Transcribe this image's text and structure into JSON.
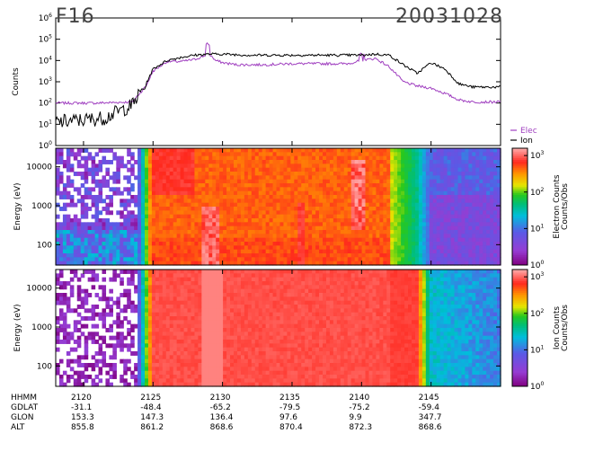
{
  "header": {
    "satellite": "F16",
    "date": "20031028"
  },
  "legend": {
    "items": [
      {
        "label": "Elec",
        "color": "#a040c0"
      },
      {
        "label": "Ion",
        "color": "#000000"
      }
    ]
  },
  "time_table": {
    "rows": [
      {
        "label": "HHMM",
        "values": [
          "2120",
          "2125",
          "2130",
          "2135",
          "2140",
          "2145"
        ]
      },
      {
        "label": "GDLAT",
        "values": [
          "-31.1",
          "-48.4",
          "-65.2",
          "-79.5",
          "-75.2",
          "-59.4"
        ]
      },
      {
        "label": "GLON",
        "values": [
          "153.3",
          "147.3",
          "136.4",
          "97.6",
          "9.9",
          "347.7"
        ]
      },
      {
        "label": "ALT",
        "values": [
          "855.8",
          "861.2",
          "868.6",
          "870.4",
          "872.3",
          "868.6"
        ]
      }
    ]
  },
  "chart_data": [
    {
      "type": "line",
      "ylabel": "Counts",
      "yscale": "log",
      "ylim_exp": [
        0,
        6
      ],
      "ytick_exps": [
        0,
        1,
        2,
        3,
        4,
        5,
        6
      ],
      "x_minutes": [
        2118,
        2150
      ],
      "xticks": [
        "2120",
        "2125",
        "2130",
        "2135",
        "2140",
        "2145"
      ],
      "series": [
        {
          "name": "Elec",
          "color": "#a040c0",
          "x": [
            2118,
            2121,
            2123.5,
            2124.5,
            2125,
            2126,
            2127,
            2128,
            2129,
            2129.5,
            2130,
            2131,
            2133,
            2135,
            2137,
            2139,
            2140,
            2141,
            2142,
            2143,
            2144,
            2145,
            2146,
            2147,
            2148,
            2150
          ],
          "log_y": [
            2.0,
            2.0,
            2.05,
            2.8,
            3.5,
            3.95,
            3.95,
            4.05,
            4.3,
            4.0,
            3.9,
            3.8,
            3.8,
            3.85,
            3.85,
            3.85,
            4.0,
            4.1,
            3.7,
            3.0,
            2.8,
            2.7,
            2.45,
            2.15,
            2.05,
            2.05
          ]
        },
        {
          "name": "Ion",
          "color": "#000000",
          "x": [
            2118,
            2120,
            2121.5,
            2122.5,
            2123.5,
            2124.5,
            2125,
            2126,
            2127,
            2128,
            2129,
            2130,
            2132,
            2135,
            2138,
            2140,
            2141,
            2142,
            2143,
            2144,
            2145,
            2146,
            2147,
            2148,
            2150
          ],
          "log_y": [
            1.1,
            1.2,
            1.3,
            1.6,
            1.9,
            2.9,
            3.6,
            4.0,
            4.15,
            4.25,
            4.3,
            4.3,
            4.25,
            4.25,
            4.25,
            4.25,
            4.3,
            4.25,
            3.8,
            3.4,
            3.9,
            3.6,
            2.9,
            2.75,
            2.75
          ]
        }
      ]
    },
    {
      "type": "heatmap",
      "title": "Electron Counts Counts/Obs",
      "ylabel": "Energy (eV)",
      "yticks": [
        "100",
        "1000",
        "10000"
      ],
      "colorbar_ticks_exp": [
        0,
        1,
        2,
        3
      ],
      "colorbar_label": "Electron Counts Counts/Obs"
    },
    {
      "type": "heatmap",
      "title": "Ion Counts Counts/Obs",
      "ylabel": "Energy (eV)",
      "yticks": [
        "100",
        "1000",
        "10000"
      ],
      "colorbar_ticks_exp": [
        0,
        1,
        2,
        3
      ],
      "colorbar_label": "Ion Counts Counts/Obs"
    }
  ]
}
